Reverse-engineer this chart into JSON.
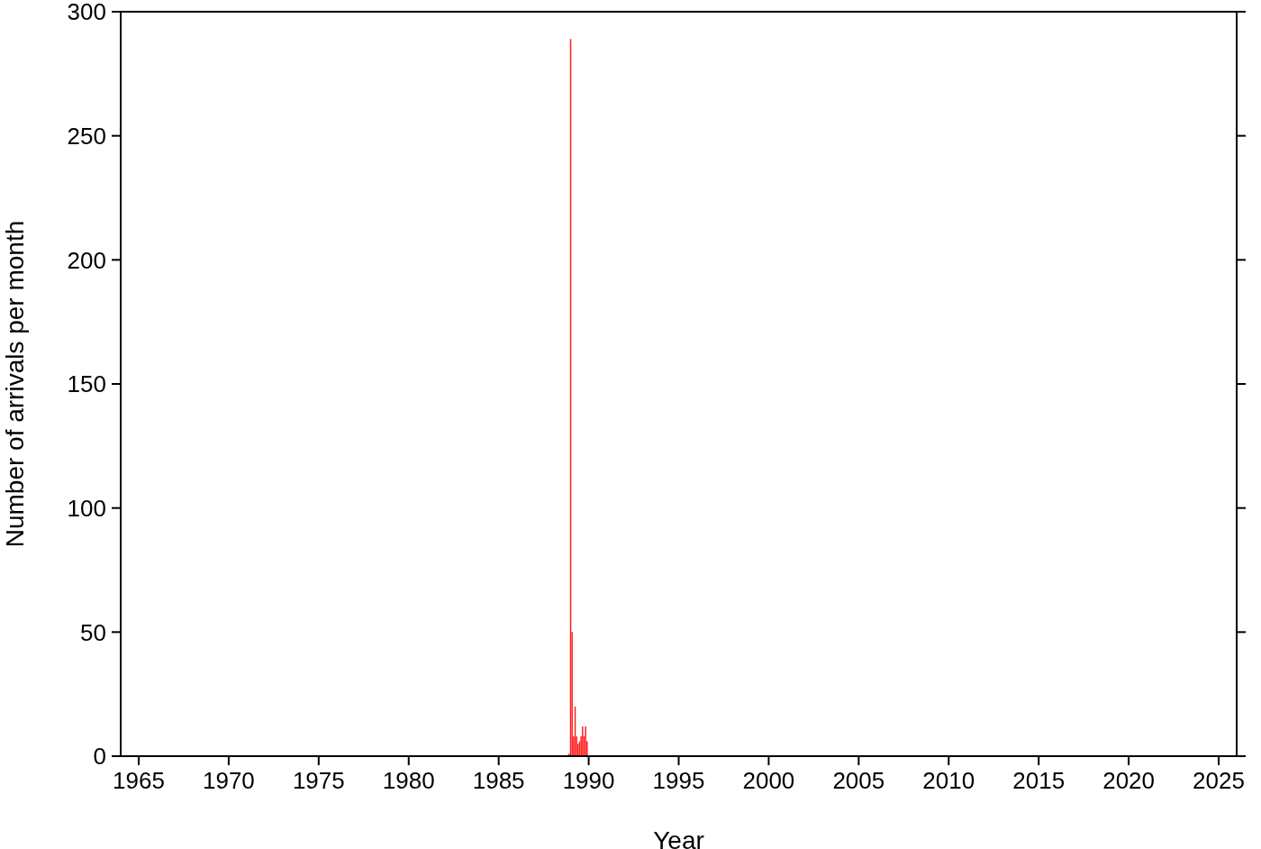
{
  "chart_data": {
    "type": "bar",
    "xlabel": "Year",
    "ylabel": "Number of arrivals per month",
    "x": [
      "1988-12",
      "1989-01",
      "1989-02",
      "1989-03",
      "1989-04",
      "1989-05",
      "1989-06",
      "1989-07",
      "1989-08",
      "1989-09",
      "1989-10",
      "1989-11",
      "1989-12"
    ],
    "values": [
      1,
      289,
      50,
      8,
      20,
      8,
      5,
      6,
      8,
      12,
      8,
      12,
      6
    ],
    "color": "#ff2020",
    "xlim": [
      "1964",
      "2026"
    ],
    "xticks": [
      "1965",
      "1970",
      "1975",
      "1980",
      "1985",
      "1990",
      "1995",
      "2000",
      "2005",
      "2010",
      "2015",
      "2020",
      "2025"
    ],
    "ylim": [
      0,
      300
    ],
    "yticks": [
      0,
      50,
      100,
      150,
      200,
      250,
      300
    ],
    "grid": false,
    "legend": false
  }
}
